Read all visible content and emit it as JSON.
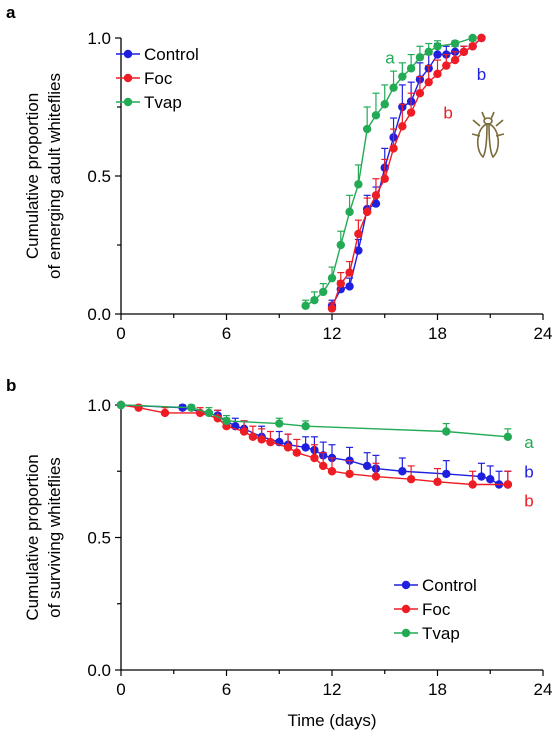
{
  "colors": {
    "Control": "#1f1fe0",
    "Foc": "#ee1c24",
    "Tvap": "#22aa55"
  },
  "chart_data": [
    {
      "panel": "a",
      "type": "line",
      "xlabel": "",
      "ylabel_lines": [
        "Cumulative proportion",
        "of emerging  adult  whiteflies"
      ],
      "xlim": [
        0,
        24
      ],
      "ylim": [
        0,
        1
      ],
      "x_ticks": [
        "0",
        "6",
        "12",
        "18",
        "24"
      ],
      "y_ticks": [
        "0.0",
        "0.5",
        "1.0"
      ],
      "legend": [
        "Control",
        "Foc",
        "Tvap"
      ],
      "legend_position": "top-left",
      "series": [
        {
          "name": "Control",
          "x": [
            12.0,
            12.5,
            13.0,
            13.5,
            14.0,
            14.5,
            15.0,
            15.5,
            16.0,
            16.5,
            17.0,
            17.5,
            18.0,
            18.5,
            19.0,
            19.5,
            20.0,
            20.5
          ],
          "y": [
            0.03,
            0.09,
            0.1,
            0.23,
            0.38,
            0.4,
            0.53,
            0.64,
            0.75,
            0.77,
            0.85,
            0.89,
            0.94,
            0.94,
            0.95,
            0.95,
            0.97,
            1.0
          ],
          "err": [
            0.02,
            0.03,
            0.03,
            0.04,
            0.05,
            0.06,
            0.07,
            0.07,
            0.08,
            0.07,
            0.06,
            0.05,
            0.04,
            0.03,
            0.02,
            0.02,
            0.02,
            0.0
          ]
        },
        {
          "name": "Foc",
          "x": [
            12.0,
            12.5,
            13.0,
            13.5,
            14.0,
            14.5,
            15.0,
            15.5,
            16.0,
            16.5,
            17.0,
            17.5,
            18.0,
            18.5,
            19.0,
            19.5,
            20.0,
            20.5
          ],
          "y": [
            0.02,
            0.11,
            0.15,
            0.29,
            0.37,
            0.43,
            0.49,
            0.6,
            0.68,
            0.73,
            0.8,
            0.84,
            0.87,
            0.9,
            0.92,
            0.95,
            0.97,
            1.0
          ],
          "err": [
            0.02,
            0.04,
            0.04,
            0.05,
            0.05,
            0.06,
            0.07,
            0.07,
            0.08,
            0.07,
            0.06,
            0.06,
            0.05,
            0.04,
            0.03,
            0.02,
            0.02,
            0.0
          ]
        },
        {
          "name": "Tvap",
          "x": [
            10.5,
            11.0,
            11.5,
            12.0,
            12.5,
            13.0,
            13.5,
            14.0,
            14.5,
            15.0,
            15.5,
            16.0,
            16.5,
            17.0,
            17.5,
            18.0,
            19.0,
            20.0
          ],
          "y": [
            0.03,
            0.05,
            0.08,
            0.13,
            0.25,
            0.37,
            0.47,
            0.67,
            0.72,
            0.76,
            0.82,
            0.86,
            0.89,
            0.93,
            0.95,
            0.97,
            0.98,
            1.0
          ],
          "err": [
            0.02,
            0.03,
            0.03,
            0.04,
            0.05,
            0.06,
            0.07,
            0.08,
            0.08,
            0.07,
            0.06,
            0.05,
            0.05,
            0.04,
            0.03,
            0.02,
            0.01,
            0.0
          ]
        }
      ],
      "annotations": [
        {
          "text": "a",
          "series": "Tvap",
          "x": 15.3,
          "y": 0.93
        },
        {
          "text": "b",
          "series": "Control",
          "x": 20.5,
          "y": 0.87
        },
        {
          "text": "b",
          "series": "Foc",
          "x": 18.6,
          "y": 0.73
        }
      ]
    },
    {
      "panel": "b",
      "type": "line",
      "xlabel": "Time (days)",
      "ylabel_lines": [
        "Cumulative proportion",
        "of surviving  whiteflies"
      ],
      "xlim": [
        0,
        24
      ],
      "ylim": [
        0,
        1
      ],
      "x_ticks": [
        "0",
        "6",
        "12",
        "18",
        "24"
      ],
      "y_ticks": [
        "0.0",
        "0.5",
        "1.0"
      ],
      "legend": [
        "Control",
        "Foc",
        "Tvap"
      ],
      "legend_position": "bottom-right",
      "series": [
        {
          "name": "Control",
          "x": [
            0,
            3.5,
            5.5,
            6.5,
            7.0,
            8.0,
            9.0,
            9.5,
            10.5,
            11.0,
            11.5,
            12.0,
            13.0,
            14.0,
            14.5,
            16.0,
            18.5,
            20.5,
            21.0,
            21.5,
            22.0
          ],
          "y": [
            1.0,
            0.99,
            0.96,
            0.92,
            0.91,
            0.88,
            0.86,
            0.85,
            0.84,
            0.83,
            0.81,
            0.8,
            0.79,
            0.77,
            0.76,
            0.75,
            0.74,
            0.73,
            0.72,
            0.7,
            0.7
          ],
          "err": [
            0.0,
            0.01,
            0.02,
            0.03,
            0.03,
            0.04,
            0.04,
            0.04,
            0.04,
            0.05,
            0.05,
            0.05,
            0.05,
            0.05,
            0.05,
            0.05,
            0.05,
            0.05,
            0.05,
            0.05,
            0.05
          ]
        },
        {
          "name": "Foc",
          "x": [
            0,
            1,
            2.5,
            4.5,
            5.5,
            6.0,
            7.0,
            7.5,
            8.0,
            8.5,
            9.5,
            10.0,
            11.0,
            11.5,
            12.0,
            13.0,
            14.5,
            16.5,
            18.0,
            20.0,
            22.0
          ],
          "y": [
            1.0,
            0.99,
            0.97,
            0.97,
            0.95,
            0.92,
            0.9,
            0.88,
            0.87,
            0.86,
            0.84,
            0.82,
            0.8,
            0.77,
            0.75,
            0.74,
            0.73,
            0.72,
            0.71,
            0.7,
            0.7
          ],
          "err": [
            0.0,
            0.01,
            0.02,
            0.02,
            0.03,
            0.03,
            0.04,
            0.04,
            0.04,
            0.04,
            0.05,
            0.05,
            0.05,
            0.05,
            0.05,
            0.05,
            0.05,
            0.05,
            0.05,
            0.05,
            0.05
          ]
        },
        {
          "name": "Tvap",
          "x": [
            0,
            4,
            5,
            6,
            9,
            10.5,
            18.5,
            22
          ],
          "y": [
            1.0,
            0.99,
            0.97,
            0.94,
            0.93,
            0.92,
            0.9,
            0.88
          ],
          "err": [
            0.0,
            0.01,
            0.02,
            0.02,
            0.02,
            0.02,
            0.03,
            0.03
          ]
        }
      ],
      "annotations": [
        {
          "text": "a",
          "series": "Tvap",
          "x": 23.2,
          "y": 0.86
        },
        {
          "text": "b",
          "series": "Control",
          "x": 23.2,
          "y": 0.75
        },
        {
          "text": "b",
          "series": "Foc",
          "x": 23.2,
          "y": 0.64
        }
      ]
    }
  ]
}
